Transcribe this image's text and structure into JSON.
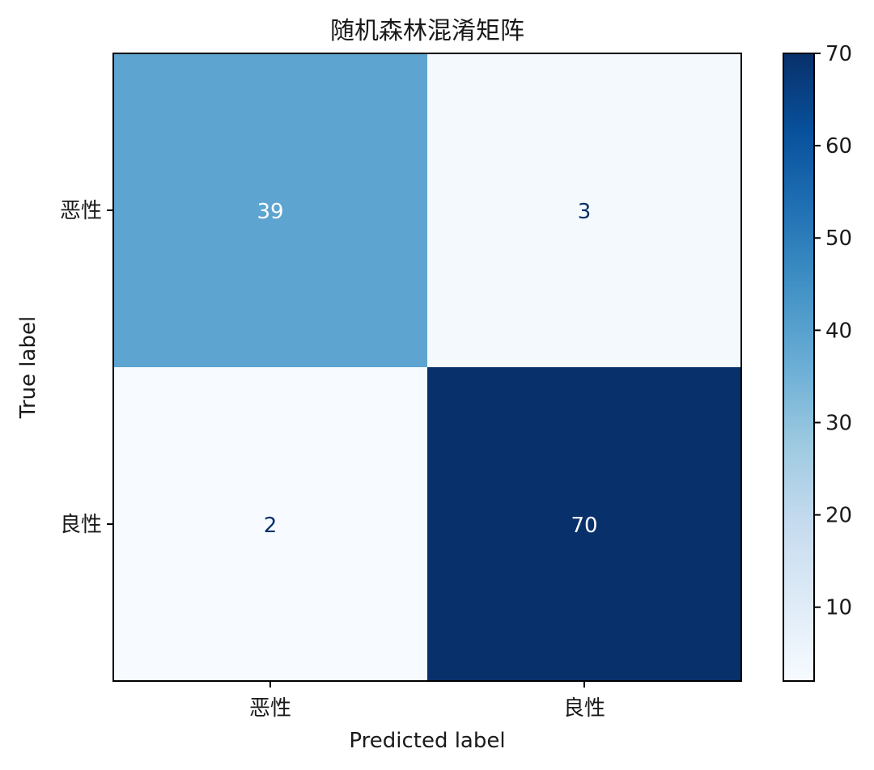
{
  "chart_data": {
    "type": "heatmap",
    "title": "随机森林混淆矩阵",
    "xlabel": "Predicted label",
    "ylabel": "True label",
    "x_categories": [
      "恶性",
      "良性"
    ],
    "y_categories": [
      "恶性",
      "良性"
    ],
    "values": [
      [
        39,
        3
      ],
      [
        2,
        70
      ]
    ],
    "colormap": "Blues",
    "colorbar": {
      "min": 2,
      "max": 70,
      "ticks": [
        10,
        20,
        30,
        40,
        50,
        60,
        70
      ]
    },
    "colors": {
      "light": "#f7fbff",
      "dark": "#08306b",
      "text_on_dark": "#ffffff",
      "text_on_light": "#08306b"
    }
  }
}
